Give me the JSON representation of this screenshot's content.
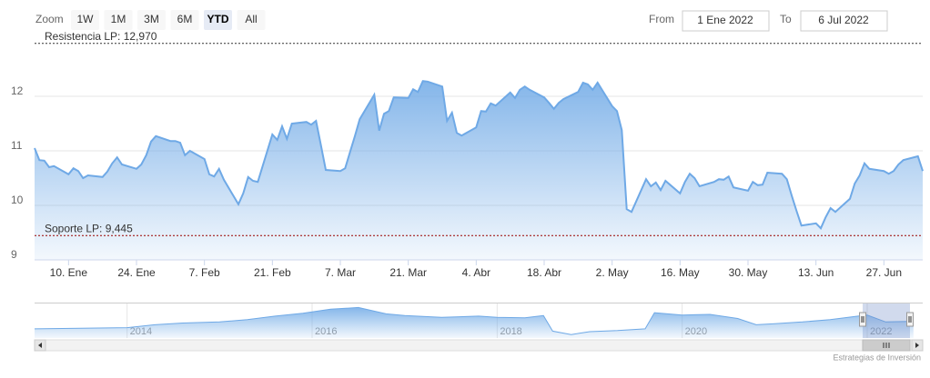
{
  "range_selector": {
    "zoom_label": "Zoom",
    "buttons": [
      "1W",
      "1M",
      "3M",
      "6M",
      "YTD",
      "All"
    ],
    "selected": "YTD",
    "from_label": "From",
    "from": "1 Ene 2022",
    "to_label": "To",
    "to": "6 Jul 2022"
  },
  "chart_data": [
    {
      "type": "area",
      "x": [
        3,
        4,
        5,
        6,
        7,
        10,
        11,
        12,
        13,
        14,
        17,
        18,
        19,
        20,
        21,
        24,
        25,
        26,
        27,
        28,
        31,
        32,
        33,
        34,
        35,
        38,
        39,
        40,
        41,
        42,
        45,
        46,
        47,
        48,
        49,
        52,
        53,
        54,
        55,
        56,
        59,
        60,
        61,
        62,
        63,
        66,
        67,
        68,
        69,
        70,
        73,
        74,
        75,
        76,
        77,
        80,
        81,
        82,
        83,
        84,
        87,
        88,
        89,
        90,
        91,
        94,
        95,
        96,
        97,
        98,
        101,
        102,
        103,
        104,
        105,
        108,
        109,
        110,
        111,
        112,
        115,
        116,
        117,
        118,
        119,
        122,
        123,
        124,
        125,
        126,
        129,
        130,
        131,
        132,
        133,
        136,
        137,
        138,
        139,
        140,
        143,
        144,
        145,
        146,
        147,
        150,
        151,
        152,
        153,
        154,
        157,
        158,
        159,
        160,
        161,
        164,
        165,
        166,
        167,
        168,
        171,
        172,
        173,
        174,
        175,
        178,
        179,
        180,
        181,
        182,
        185,
        186
      ],
      "series": [
        {
          "color": "#6fa9e6",
          "values": [
            11.05,
            10.83,
            10.82,
            10.7,
            10.72,
            10.57,
            10.68,
            10.63,
            10.5,
            10.55,
            10.52,
            10.62,
            10.77,
            10.88,
            10.75,
            10.67,
            10.75,
            10.92,
            11.17,
            11.27,
            11.18,
            11.18,
            11.15,
            10.92,
            11.0,
            10.85,
            10.57,
            10.53,
            10.67,
            10.47,
            10.02,
            10.22,
            10.52,
            10.45,
            10.43,
            11.3,
            11.2,
            11.45,
            11.22,
            11.5,
            11.53,
            11.48,
            11.55,
            11.1,
            10.65,
            10.63,
            10.68,
            10.98,
            11.27,
            11.58,
            12.03,
            11.37,
            11.68,
            11.73,
            11.98,
            11.97,
            12.13,
            12.08,
            12.28,
            12.27,
            12.18,
            11.55,
            11.7,
            11.33,
            11.28,
            11.43,
            11.73,
            11.72,
            11.87,
            11.83,
            12.07,
            11.97,
            12.12,
            12.18,
            12.12,
            11.98,
            11.88,
            11.77,
            11.88,
            11.95,
            12.08,
            12.25,
            12.22,
            12.12,
            12.25,
            11.82,
            11.73,
            11.38,
            9.93,
            9.88,
            10.48,
            10.35,
            10.42,
            10.28,
            10.45,
            10.22,
            10.43,
            10.58,
            10.5,
            10.35,
            10.43,
            10.48,
            10.47,
            10.53,
            10.33,
            10.27,
            10.43,
            10.37,
            10.38,
            10.6,
            10.58,
            10.48,
            10.18,
            9.9,
            9.63,
            9.67,
            9.58,
            9.78,
            9.95,
            9.88,
            10.12,
            10.4,
            10.55,
            10.77,
            10.67,
            10.63,
            10.58,
            10.63,
            10.75,
            10.83,
            10.9,
            10.63
          ]
        }
      ],
      "xlim": [
        3,
        186
      ],
      "xticks": [
        {
          "value": 10,
          "label": "10. Ene"
        },
        {
          "value": 24,
          "label": "24. Ene"
        },
        {
          "value": 38,
          "label": "7. Feb"
        },
        {
          "value": 52,
          "label": "21. Feb"
        },
        {
          "value": 66,
          "label": "7. Mar"
        },
        {
          "value": 80,
          "label": "21. Mar"
        },
        {
          "value": 94,
          "label": "4. Abr"
        },
        {
          "value": 108,
          "label": "18. Abr"
        },
        {
          "value": 122,
          "label": "2. May"
        },
        {
          "value": 136,
          "label": "16. May"
        },
        {
          "value": 150,
          "label": "30. May"
        },
        {
          "value": 164,
          "label": "13. Jun"
        },
        {
          "value": 178,
          "label": "27. Jun"
        }
      ],
      "ylim": [
        9,
        13.1
      ],
      "yticks": [
        9,
        10,
        11,
        12
      ],
      "grid": "y",
      "plot_lines": [
        {
          "value": 12.97,
          "label": "Resistencia LP: 12,970",
          "color": "#333333"
        },
        {
          "value": 9.445,
          "label": "Soporte LP: 9,445",
          "color": "#990000"
        }
      ]
    },
    {
      "type": "area",
      "x": [
        2013.0,
        2013.5,
        2014.0,
        2014.3,
        2014.6,
        2015.0,
        2015.3,
        2015.6,
        2015.9,
        2016.2,
        2016.5,
        2016.8,
        2017.0,
        2017.4,
        2017.8,
        2018.0,
        2018.3,
        2018.5,
        2018.6,
        2018.8,
        2019.0,
        2019.3,
        2019.6,
        2019.7,
        2020.0,
        2020.3,
        2020.6,
        2020.8,
        2021.0,
        2021.3,
        2021.6,
        2021.9,
        2022.0,
        2022.2,
        2022.5
      ],
      "series": [
        {
          "color": "#6fa9e6",
          "values": [
            8.6,
            8.7,
            8.8,
            9.3,
            9.6,
            9.8,
            10.2,
            10.8,
            11.3,
            12.0,
            12.3,
            11.2,
            10.9,
            10.6,
            10.8,
            10.6,
            10.5,
            10.9,
            8.2,
            7.6,
            8.1,
            8.3,
            8.6,
            11.4,
            11.0,
            11.1,
            10.4,
            9.3,
            9.5,
            9.8,
            10.2,
            10.8,
            11.0,
            9.8,
            9.9
          ]
        }
      ],
      "xlim": [
        2013,
        2022.6
      ],
      "xticks": [
        2014,
        2016,
        2018,
        2020,
        2022
      ],
      "ylim": [
        7,
        13
      ],
      "grid": "x"
    }
  ],
  "credits": "Estrategias de Inversión"
}
